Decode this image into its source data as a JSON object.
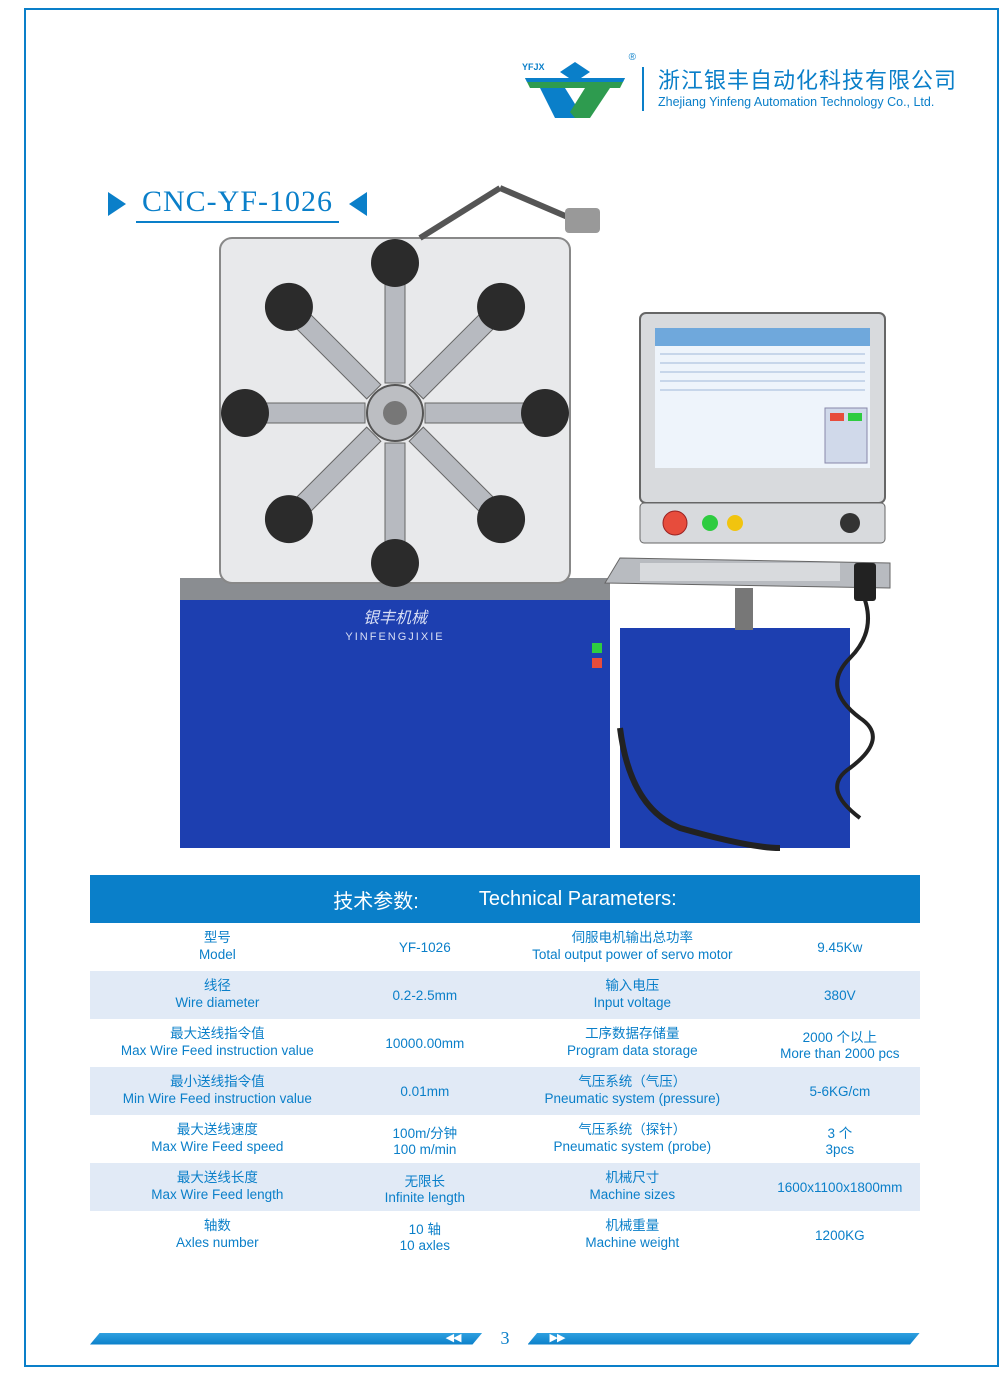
{
  "colors": {
    "brand_blue": "#0a7fc9",
    "row_alt": "#e1eaf6",
    "row_white": "#ffffff",
    "logo_green": "#2e9b4f",
    "machine_blue": "#1d3fb0",
    "machine_grey": "#c9cbce"
  },
  "header": {
    "logo_small": "YFJX",
    "registered": "®",
    "company_cn": "浙江银丰自动化科技有限公司",
    "company_en": "Zhejiang Yinfeng Automation Technology Co., Ltd."
  },
  "title": "CNC-YF-1026",
  "machine_label_cn": "银丰机械",
  "machine_label_en": "YINFENGJIXIE",
  "table": {
    "head_cn": "技术参数:",
    "head_en": "Technical Parameters:",
    "rows": [
      {
        "l_cn": "型号",
        "l_en": "Model",
        "l_val": "YF-1026",
        "r_cn": "伺服电机输出总功率",
        "r_en": "Total output power of servo motor",
        "r_val": "9.45Kw",
        "bg": "alt1"
      },
      {
        "l_cn": "线径",
        "l_en": "Wire diameter",
        "l_val": "0.2-2.5mm",
        "r_cn": "输入电压",
        "r_en": "Input voltage",
        "r_val": "380V",
        "bg": "alt2"
      },
      {
        "l_cn": "最大送线指令值",
        "l_en": "Max Wire Feed instruction value",
        "l_val": "10000.00mm",
        "r_cn": "工序数据存储量",
        "r_en": "Program data storage",
        "r_val": "2000 个以上\nMore than 2000 pcs",
        "bg": "alt1"
      },
      {
        "l_cn": "最小送线指令值",
        "l_en": "Min Wire Feed instruction value",
        "l_val": "0.01mm",
        "r_cn": "气压系统（气压）",
        "r_en": "Pneumatic system (pressure)",
        "r_val": "5-6KG/cm",
        "bg": "alt2"
      },
      {
        "l_cn": "最大送线速度",
        "l_en": "Max Wire Feed speed",
        "l_val": "100m/分钟\n100 m/min",
        "r_cn": "气压系统（探针）",
        "r_en": "Pneumatic system (probe)",
        "r_val": "3 个\n3pcs",
        "bg": "alt1"
      },
      {
        "l_cn": "最大送线长度",
        "l_en": "Max Wire Feed length",
        "l_val": "无限长\nInfinite length",
        "r_cn": "机械尺寸",
        "r_en": "Machine sizes",
        "r_val": "1600x1100x1800mm",
        "bg": "alt2"
      },
      {
        "l_cn": "轴数",
        "l_en": "Axles number",
        "l_val": "10 轴\n10 axles",
        "r_cn": "机械重量",
        "r_en": "Machine weight",
        "r_val": "1200KG",
        "bg": "alt1"
      }
    ]
  },
  "footer": {
    "page": "3",
    "left_arrows": "◀◀",
    "right_arrows": "▶▶"
  }
}
